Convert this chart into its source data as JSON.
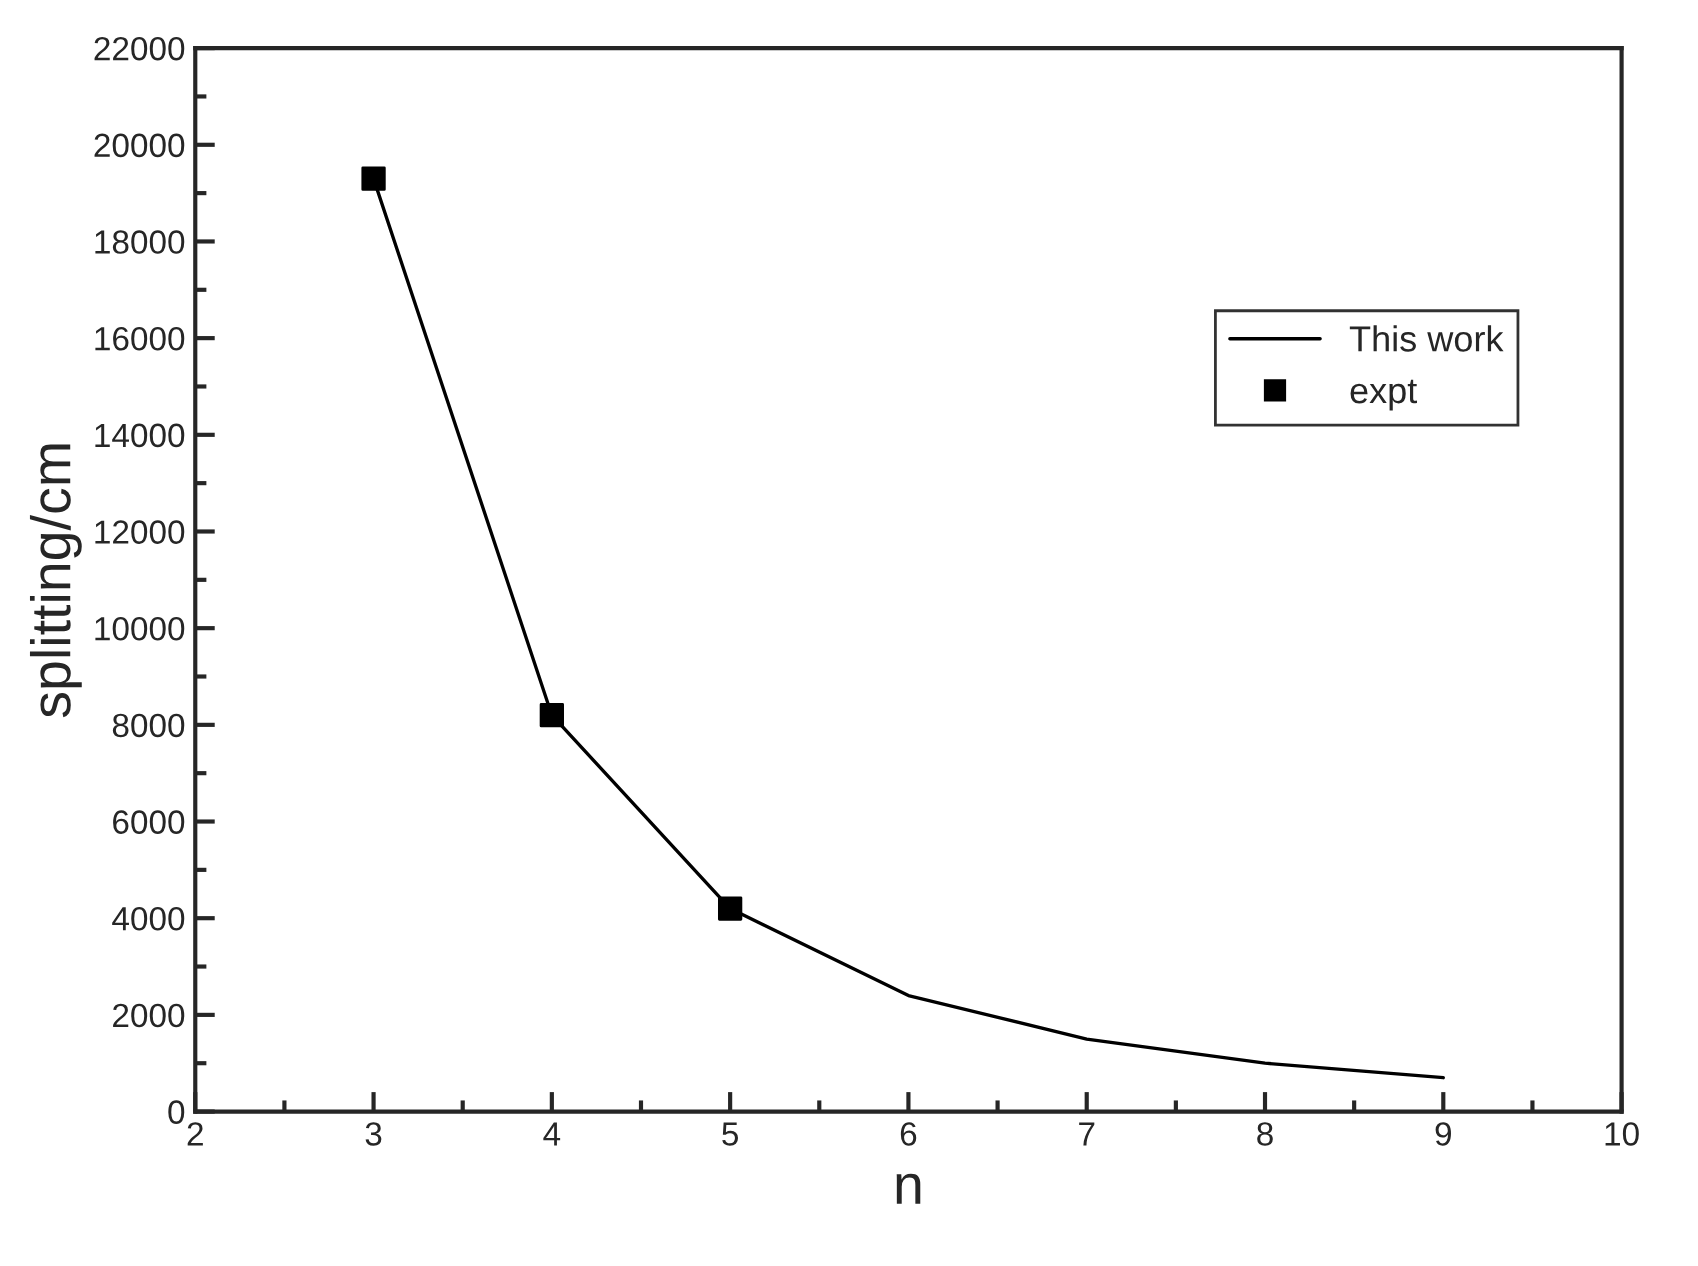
{
  "chart_data": {
    "type": "line",
    "xlabel": "n",
    "ylabel": "splitting/cm",
    "x": [
      3,
      4,
      5,
      6,
      7,
      8,
      9
    ],
    "series": [
      {
        "name": "This work",
        "color": "#000000",
        "marker": "none",
        "values": [
          19300,
          8200,
          4200,
          2400,
          1500,
          1000,
          700
        ]
      },
      {
        "name": "expt",
        "type": "scatter",
        "color": "#000000",
        "marker": "square",
        "x": [
          3,
          4,
          5
        ],
        "values": [
          19300,
          8200,
          4200
        ]
      }
    ],
    "xlim": [
      2,
      10
    ],
    "xticks": [
      2,
      3,
      4,
      5,
      6,
      7,
      8,
      9,
      10
    ],
    "ylim": [
      0,
      22000
    ],
    "yticks": [
      0,
      2000,
      4000,
      6000,
      8000,
      10000,
      12000,
      14000,
      16000,
      18000,
      20000,
      22000
    ],
    "grid": false,
    "legend": "top right"
  }
}
